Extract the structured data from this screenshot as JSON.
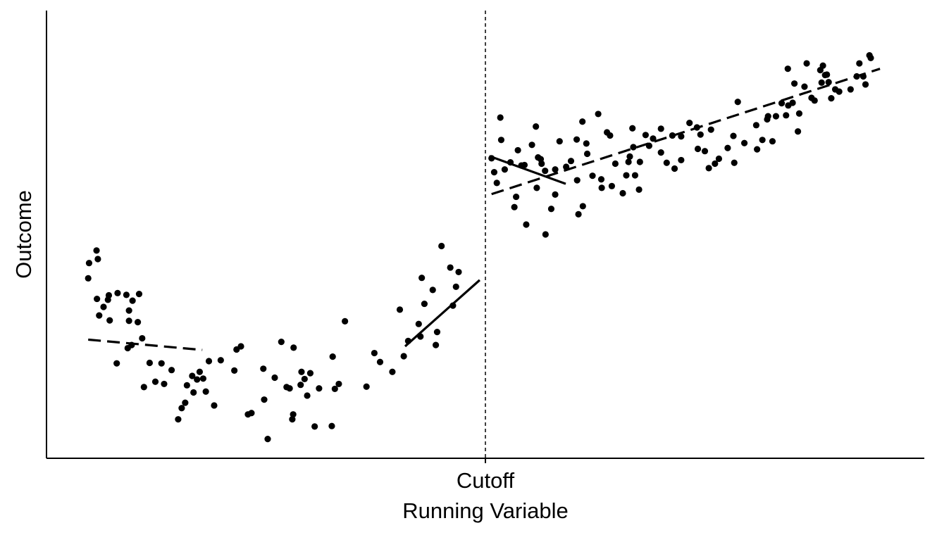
{
  "chart_data": {
    "type": "scatter",
    "title": "",
    "xlabel": "Running Variable",
    "ylabel": "Outcome",
    "x_tick_label": "Cutoff",
    "cutoff": 0,
    "xlim": [
      -1.0,
      1.0
    ],
    "ylim": [
      0,
      1
    ],
    "grid": false,
    "legend": "none",
    "colors": {
      "points": "#000000",
      "lines": "#000000",
      "axes": "#000000"
    },
    "points": [
      {
        "x": -0.905,
        "y": 0.402
      },
      {
        "x": -0.903,
        "y": 0.436
      },
      {
        "x": -0.886,
        "y": 0.464
      },
      {
        "x": -0.883,
        "y": 0.445
      },
      {
        "x": -0.885,
        "y": 0.356
      },
      {
        "x": -0.88,
        "y": 0.319
      },
      {
        "x": -0.87,
        "y": 0.338
      },
      {
        "x": -0.86,
        "y": 0.354
      },
      {
        "x": -0.858,
        "y": 0.364
      },
      {
        "x": -0.856,
        "y": 0.308
      },
      {
        "x": -0.838,
        "y": 0.369
      },
      {
        "x": -0.84,
        "y": 0.212
      },
      {
        "x": -0.818,
        "y": 0.365
      },
      {
        "x": -0.812,
        "y": 0.33
      },
      {
        "x": -0.812,
        "y": 0.307
      },
      {
        "x": -0.815,
        "y": 0.246
      },
      {
        "x": -0.806,
        "y": 0.253
      },
      {
        "x": -0.804,
        "y": 0.352
      },
      {
        "x": -0.792,
        "y": 0.304
      },
      {
        "x": -0.789,
        "y": 0.367
      },
      {
        "x": -0.782,
        "y": 0.268
      },
      {
        "x": -0.778,
        "y": 0.159
      },
      {
        "x": -0.765,
        "y": 0.213
      },
      {
        "x": -0.752,
        "y": 0.171
      },
      {
        "x": -0.738,
        "y": 0.212
      },
      {
        "x": -0.732,
        "y": 0.166
      },
      {
        "x": -0.715,
        "y": 0.197
      },
      {
        "x": -0.7,
        "y": 0.087
      },
      {
        "x": -0.692,
        "y": 0.112
      },
      {
        "x": -0.684,
        "y": 0.124
      },
      {
        "x": -0.68,
        "y": 0.163
      },
      {
        "x": -0.668,
        "y": 0.184
      },
      {
        "x": -0.665,
        "y": 0.147
      },
      {
        "x": -0.657,
        "y": 0.176
      },
      {
        "x": -0.651,
        "y": 0.193
      },
      {
        "x": -0.643,
        "y": 0.178
      },
      {
        "x": -0.637,
        "y": 0.149
      },
      {
        "x": -0.63,
        "y": 0.217
      },
      {
        "x": -0.618,
        "y": 0.118
      },
      {
        "x": -0.603,
        "y": 0.219
      },
      {
        "x": -0.572,
        "y": 0.196
      },
      {
        "x": -0.567,
        "y": 0.243
      },
      {
        "x": -0.557,
        "y": 0.25
      },
      {
        "x": -0.541,
        "y": 0.098
      },
      {
        "x": -0.533,
        "y": 0.101
      },
      {
        "x": -0.506,
        "y": 0.2
      },
      {
        "x": -0.504,
        "y": 0.131
      },
      {
        "x": -0.496,
        "y": 0.043
      },
      {
        "x": -0.48,
        "y": 0.18
      },
      {
        "x": -0.465,
        "y": 0.26
      },
      {
        "x": -0.453,
        "y": 0.159
      },
      {
        "x": -0.446,
        "y": 0.156
      },
      {
        "x": -0.438,
        "y": 0.098
      },
      {
        "x": -0.44,
        "y": 0.087
      },
      {
        "x": -0.437,
        "y": 0.247
      },
      {
        "x": -0.421,
        "y": 0.164
      },
      {
        "x": -0.419,
        "y": 0.193
      },
      {
        "x": -0.412,
        "y": 0.177
      },
      {
        "x": -0.406,
        "y": 0.14
      },
      {
        "x": -0.399,
        "y": 0.19
      },
      {
        "x": -0.389,
        "y": 0.071
      },
      {
        "x": -0.379,
        "y": 0.156
      },
      {
        "x": -0.35,
        "y": 0.072
      },
      {
        "x": -0.348,
        "y": 0.227
      },
      {
        "x": -0.343,
        "y": 0.155
      },
      {
        "x": -0.334,
        "y": 0.166
      },
      {
        "x": -0.32,
        "y": 0.306
      },
      {
        "x": -0.271,
        "y": 0.16
      },
      {
        "x": -0.253,
        "y": 0.235
      },
      {
        "x": -0.24,
        "y": 0.215
      },
      {
        "x": -0.212,
        "y": 0.193
      },
      {
        "x": -0.195,
        "y": 0.332
      },
      {
        "x": -0.186,
        "y": 0.228
      },
      {
        "x": -0.176,
        "y": 0.262
      },
      {
        "x": -0.152,
        "y": 0.3
      },
      {
        "x": -0.148,
        "y": 0.272
      },
      {
        "x": -0.145,
        "y": 0.403
      },
      {
        "x": -0.139,
        "y": 0.345
      },
      {
        "x": -0.12,
        "y": 0.376
      },
      {
        "x": -0.113,
        "y": 0.253
      },
      {
        "x": -0.11,
        "y": 0.282
      },
      {
        "x": -0.1,
        "y": 0.474
      },
      {
        "x": -0.08,
        "y": 0.426
      },
      {
        "x": -0.074,
        "y": 0.341
      },
      {
        "x": -0.067,
        "y": 0.383
      },
      {
        "x": -0.061,
        "y": 0.416
      },
      {
        "x": 0.014,
        "y": 0.67
      },
      {
        "x": 0.026,
        "y": 0.615
      },
      {
        "x": 0.02,
        "y": 0.639
      },
      {
        "x": 0.034,
        "y": 0.761
      },
      {
        "x": 0.036,
        "y": 0.711
      },
      {
        "x": 0.044,
        "y": 0.645
      },
      {
        "x": 0.057,
        "y": 0.661
      },
      {
        "x": 0.066,
        "y": 0.561
      },
      {
        "x": 0.07,
        "y": 0.584
      },
      {
        "x": 0.074,
        "y": 0.688
      },
      {
        "x": 0.082,
        "y": 0.654
      },
      {
        "x": 0.089,
        "y": 0.655
      },
      {
        "x": 0.093,
        "y": 0.522
      },
      {
        "x": 0.106,
        "y": 0.7
      },
      {
        "x": 0.115,
        "y": 0.741
      },
      {
        "x": 0.117,
        "y": 0.604
      },
      {
        "x": 0.12,
        "y": 0.672
      },
      {
        "x": 0.126,
        "y": 0.668
      },
      {
        "x": 0.128,
        "y": 0.658
      },
      {
        "x": 0.136,
        "y": 0.642
      },
      {
        "x": 0.137,
        "y": 0.5
      },
      {
        "x": 0.15,
        "y": 0.557
      },
      {
        "x": 0.159,
        "y": 0.589
      },
      {
        "x": 0.159,
        "y": 0.645
      },
      {
        "x": 0.169,
        "y": 0.708
      },
      {
        "x": 0.184,
        "y": 0.651
      },
      {
        "x": 0.195,
        "y": 0.664
      },
      {
        "x": 0.208,
        "y": 0.712
      },
      {
        "x": 0.209,
        "y": 0.621
      },
      {
        "x": 0.212,
        "y": 0.545
      },
      {
        "x": 0.221,
        "y": 0.752
      },
      {
        "x": 0.222,
        "y": 0.563
      },
      {
        "x": 0.23,
        "y": 0.703
      },
      {
        "x": 0.232,
        "y": 0.68
      },
      {
        "x": 0.244,
        "y": 0.631
      },
      {
        "x": 0.257,
        "y": 0.769
      },
      {
        "x": 0.264,
        "y": 0.623
      },
      {
        "x": 0.265,
        "y": 0.604
      },
      {
        "x": 0.277,
        "y": 0.728
      },
      {
        "x": 0.284,
        "y": 0.721
      },
      {
        "x": 0.288,
        "y": 0.608
      },
      {
        "x": 0.296,
        "y": 0.658
      },
      {
        "x": 0.313,
        "y": 0.592
      },
      {
        "x": 0.321,
        "y": 0.632
      },
      {
        "x": 0.326,
        "y": 0.662
      },
      {
        "x": 0.329,
        "y": 0.674
      },
      {
        "x": 0.335,
        "y": 0.737
      },
      {
        "x": 0.337,
        "y": 0.695
      },
      {
        "x": 0.341,
        "y": 0.632
      },
      {
        "x": 0.35,
        "y": 0.6
      },
      {
        "x": 0.352,
        "y": 0.662
      },
      {
        "x": 0.365,
        "y": 0.722
      },
      {
        "x": 0.373,
        "y": 0.698
      },
      {
        "x": 0.382,
        "y": 0.714
      },
      {
        "x": 0.4,
        "y": 0.683
      },
      {
        "x": 0.4,
        "y": 0.736
      },
      {
        "x": 0.413,
        "y": 0.66
      },
      {
        "x": 0.426,
        "y": 0.721
      },
      {
        "x": 0.431,
        "y": 0.647
      },
      {
        "x": 0.446,
        "y": 0.719
      },
      {
        "x": 0.446,
        "y": 0.666
      },
      {
        "x": 0.465,
        "y": 0.749
      },
      {
        "x": 0.482,
        "y": 0.739
      },
      {
        "x": 0.484,
        "y": 0.691
      },
      {
        "x": 0.49,
        "y": 0.723
      },
      {
        "x": 0.5,
        "y": 0.686
      },
      {
        "x": 0.509,
        "y": 0.648
      },
      {
        "x": 0.514,
        "y": 0.734
      },
      {
        "x": 0.523,
        "y": 0.658
      },
      {
        "x": 0.532,
        "y": 0.669
      },
      {
        "x": 0.552,
        "y": 0.693
      },
      {
        "x": 0.565,
        "y": 0.72
      },
      {
        "x": 0.567,
        "y": 0.66
      },
      {
        "x": 0.575,
        "y": 0.796
      },
      {
        "x": 0.59,
        "y": 0.704
      },
      {
        "x": 0.617,
        "y": 0.744
      },
      {
        "x": 0.619,
        "y": 0.69
      },
      {
        "x": 0.631,
        "y": 0.711
      },
      {
        "x": 0.642,
        "y": 0.757
      },
      {
        "x": 0.644,
        "y": 0.764
      },
      {
        "x": 0.654,
        "y": 0.708
      },
      {
        "x": 0.662,
        "y": 0.764
      },
      {
        "x": 0.675,
        "y": 0.793
      },
      {
        "x": 0.685,
        "y": 0.766
      },
      {
        "x": 0.689,
        "y": 0.87
      },
      {
        "x": 0.69,
        "y": 0.788
      },
      {
        "x": 0.7,
        "y": 0.794
      },
      {
        "x": 0.704,
        "y": 0.837
      },
      {
        "x": 0.712,
        "y": 0.73
      },
      {
        "x": 0.715,
        "y": 0.77
      },
      {
        "x": 0.727,
        "y": 0.83
      },
      {
        "x": 0.732,
        "y": 0.882
      },
      {
        "x": 0.743,
        "y": 0.805
      },
      {
        "x": 0.75,
        "y": 0.799
      },
      {
        "x": 0.763,
        "y": 0.867
      },
      {
        "x": 0.766,
        "y": 0.839
      },
      {
        "x": 0.769,
        "y": 0.877
      },
      {
        "x": 0.774,
        "y": 0.856
      },
      {
        "x": 0.778,
        "y": 0.857
      },
      {
        "x": 0.782,
        "y": 0.84
      },
      {
        "x": 0.788,
        "y": 0.804
      },
      {
        "x": 0.797,
        "y": 0.824
      },
      {
        "x": 0.806,
        "y": 0.819
      },
      {
        "x": 0.832,
        "y": 0.824
      },
      {
        "x": 0.846,
        "y": 0.853
      },
      {
        "x": 0.852,
        "y": 0.882
      },
      {
        "x": 0.861,
        "y": 0.853
      },
      {
        "x": 0.866,
        "y": 0.835
      },
      {
        "x": 0.875,
        "y": 0.9
      },
      {
        "x": 0.878,
        "y": 0.894
      }
    ],
    "lines": [
      {
        "name": "left-dashed",
        "style": "dashed",
        "x": [
          -0.905,
          -0.645
        ],
        "y": [
          0.265,
          0.242
        ]
      },
      {
        "name": "left-solid",
        "style": "solid",
        "x": [
          -0.183,
          -0.013
        ],
        "y": [
          0.25,
          0.398
        ]
      },
      {
        "name": "right-solid",
        "style": "solid",
        "x": [
          0.009,
          0.183
        ],
        "y": [
          0.675,
          0.613
        ]
      },
      {
        "name": "right-dashed",
        "style": "dashed",
        "x": [
          0.014,
          0.899
        ],
        "y": [
          0.59,
          0.87
        ]
      }
    ]
  }
}
